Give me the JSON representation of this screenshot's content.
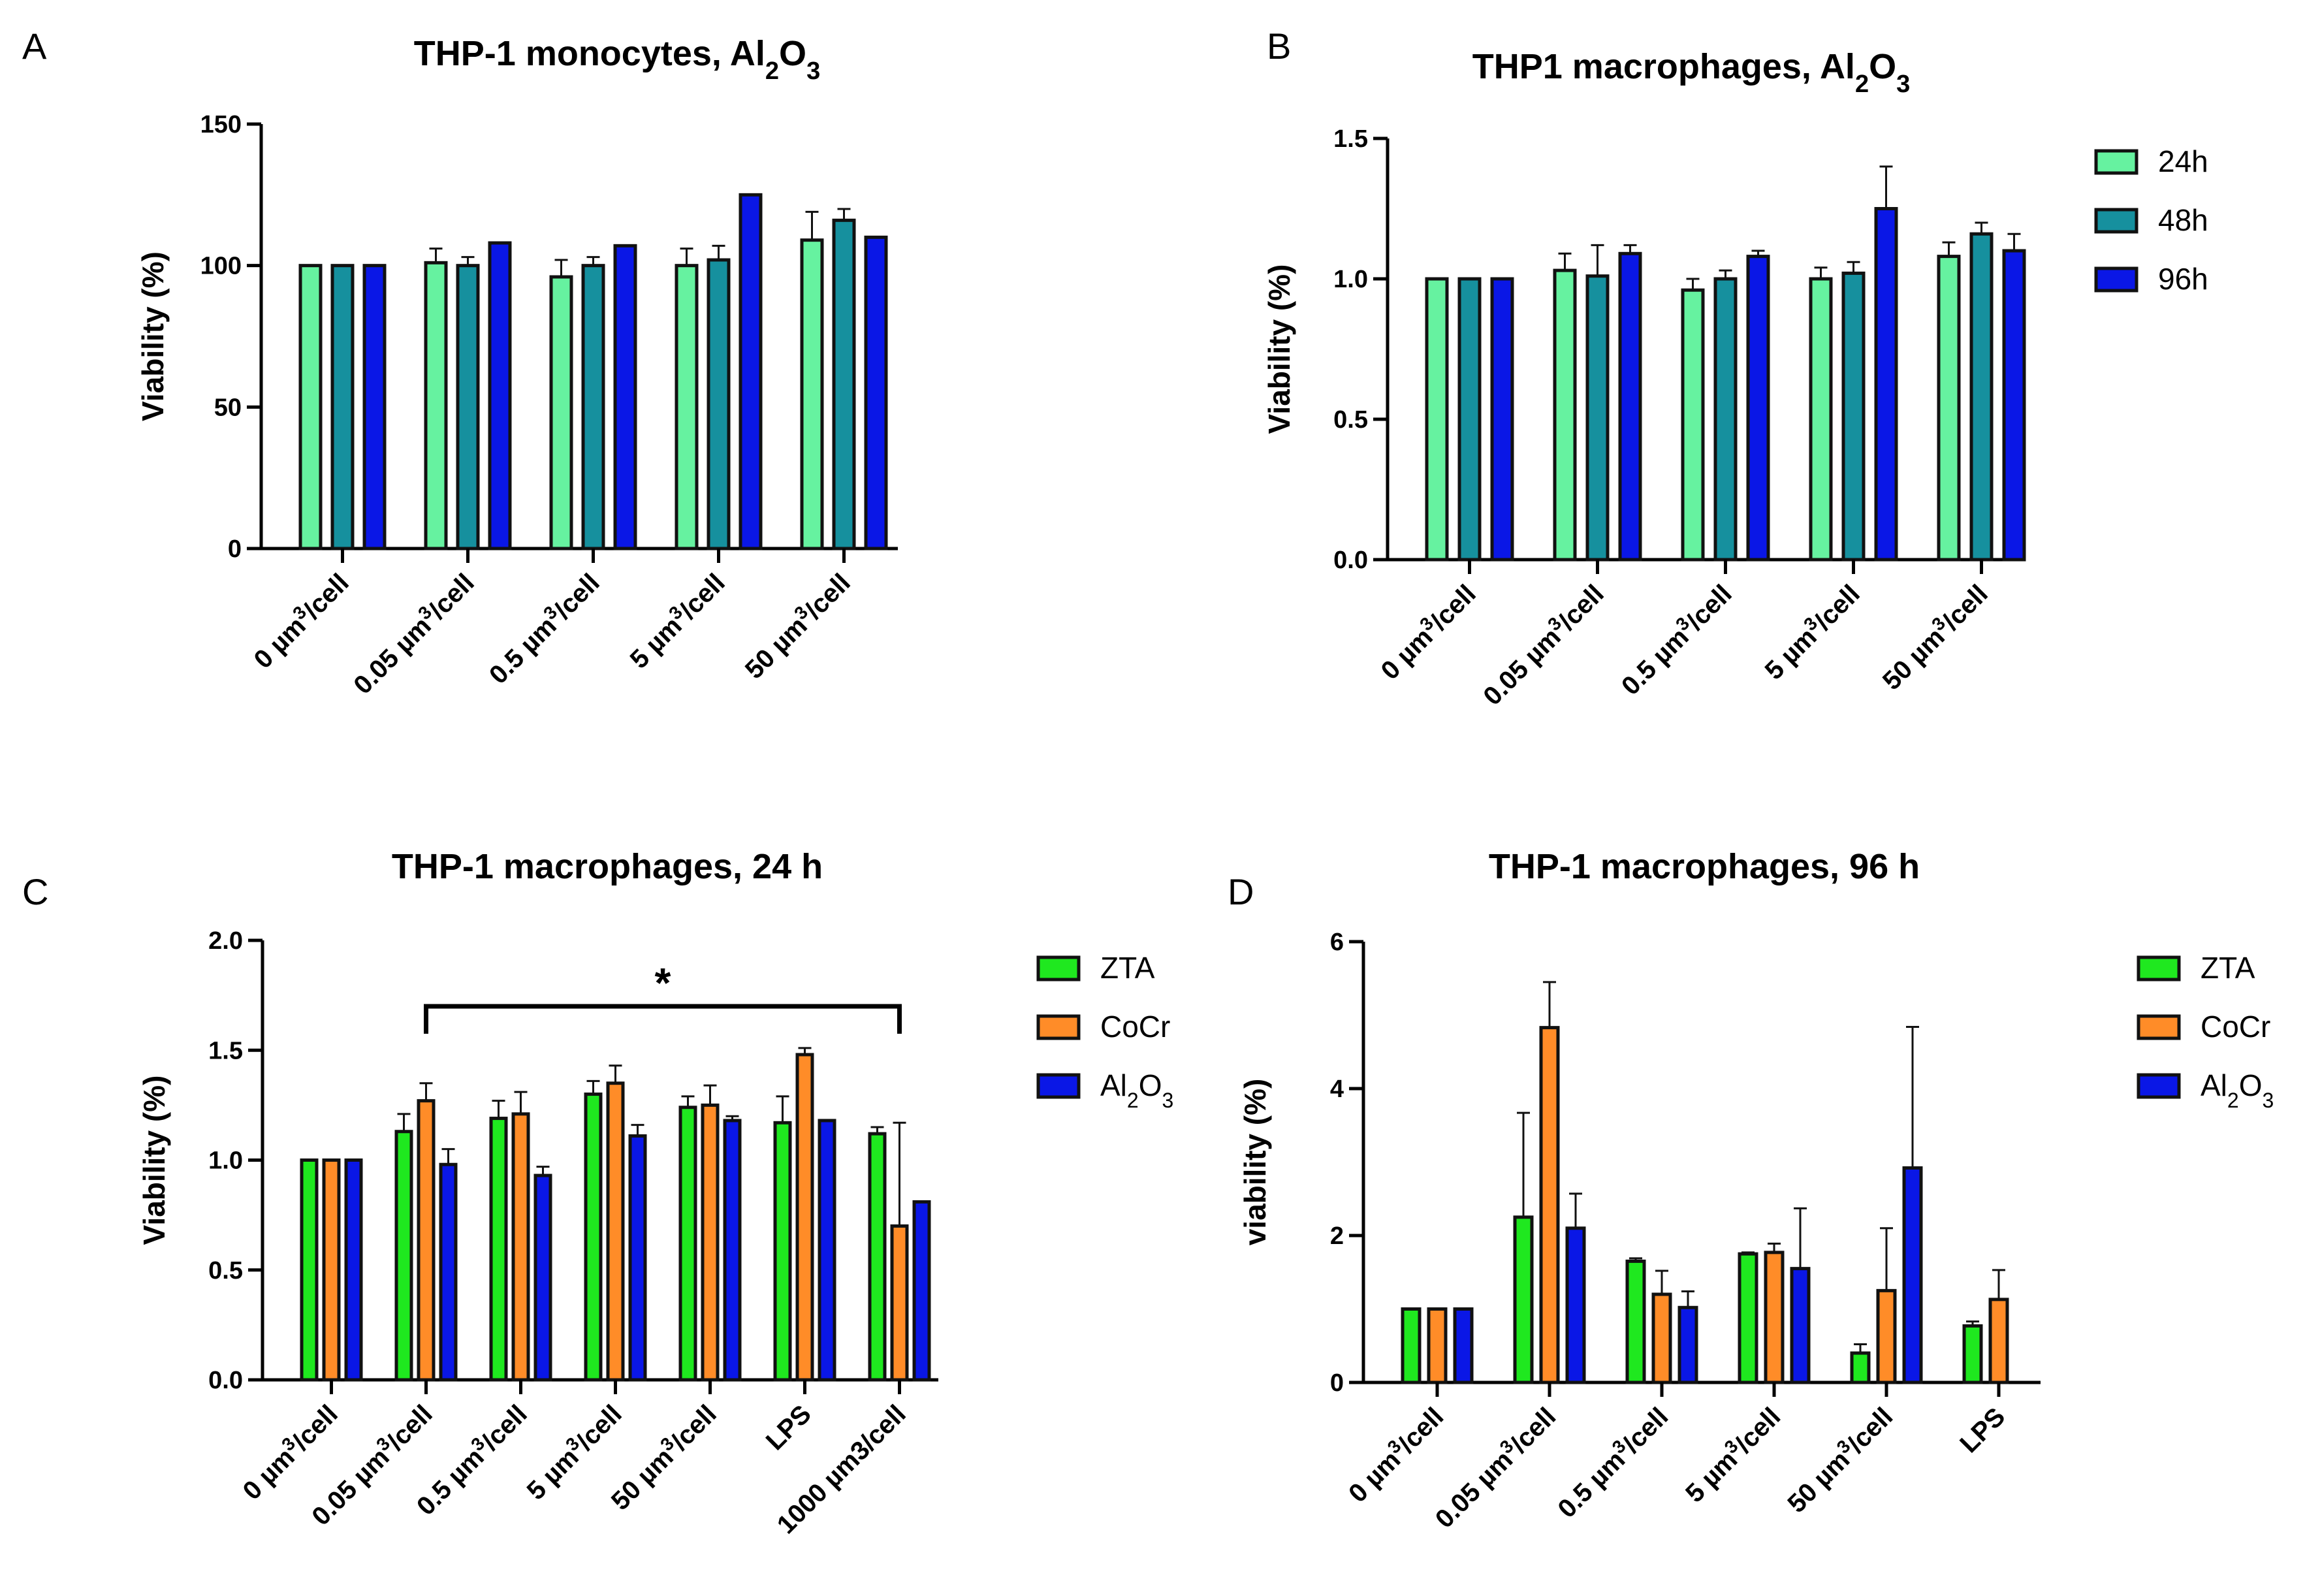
{
  "chart_data": [
    {
      "panel": "A",
      "type": "bar",
      "title": "THP-1 monocytes,  Al2O3",
      "xlabel": "",
      "ylabel": "Viability (%)",
      "ylim": [
        0,
        150
      ],
      "yticks": [
        0,
        50,
        100,
        150
      ],
      "categories": [
        "0 µm³/cell",
        "0.05 µm³/cell",
        "0.5 µm³/cell",
        "5 µm³/cell",
        "50 µm³/cell"
      ],
      "series": [
        {
          "name": "24h",
          "color": "#66f2a0",
          "values": [
            100,
            101,
            96,
            100,
            109
          ],
          "errors": [
            0,
            5,
            6,
            6,
            10
          ]
        },
        {
          "name": "48h",
          "color": "#16909e",
          "values": [
            100,
            100,
            100,
            102,
            116
          ],
          "errors": [
            0,
            3,
            3,
            5,
            4
          ]
        },
        {
          "name": "96h",
          "color": "#0a17e6",
          "values": [
            100,
            108,
            107,
            125,
            110
          ],
          "errors": [
            0,
            0,
            0,
            0,
            0
          ]
        }
      ],
      "legend": "none",
      "grid": false
    },
    {
      "panel": "B",
      "type": "bar",
      "title": "THP1 macrophages, Al2O3",
      "xlabel": "",
      "ylabel": "Viability (%)",
      "ylim": [
        0,
        1.5
      ],
      "yticks": [
        0.0,
        0.5,
        1.0,
        1.5
      ],
      "categories": [
        "0 µm³/cell",
        "0.05 µm³/cell",
        "0.5 µm³/cell",
        "5 µm³/cell",
        "50 µm³/cell"
      ],
      "series": [
        {
          "name": "24h",
          "color": "#66f2a0",
          "values": [
            1.0,
            1.03,
            0.96,
            1.0,
            1.08
          ],
          "errors": [
            0,
            0.06,
            0.04,
            0.04,
            0.05
          ]
        },
        {
          "name": "48h",
          "color": "#16909e",
          "values": [
            1.0,
            1.01,
            1.0,
            1.02,
            1.16
          ],
          "errors": [
            0,
            0.11,
            0.03,
            0.04,
            0.04
          ]
        },
        {
          "name": "96h",
          "color": "#0a17e6",
          "values": [
            1.0,
            1.09,
            1.08,
            1.25,
            1.1
          ],
          "errors": [
            0,
            0.03,
            0.02,
            0.15,
            0.06
          ]
        }
      ],
      "legend": "right",
      "grid": false
    },
    {
      "panel": "C",
      "type": "bar",
      "title": "THP-1 macrophages, 24 h",
      "xlabel": "",
      "ylabel": "Viability (%)",
      "ylim": [
        0,
        2.0
      ],
      "yticks": [
        0.0,
        0.5,
        1.0,
        1.5,
        2.0
      ],
      "categories": [
        "0 µm³/cell",
        "0.05 µm³/cell",
        "0.5 µm³/cell",
        "5 µm³/cell",
        "50 µm³/cell",
        "LPS",
        "1000 µm3/cell"
      ],
      "series": [
        {
          "name": "ZTA",
          "color": "#1fe81f",
          "values": [
            1.0,
            1.13,
            1.19,
            1.3,
            1.24,
            1.17,
            1.12
          ],
          "errors": [
            0,
            0.08,
            0.08,
            0.06,
            0.05,
            0.12,
            0.03
          ]
        },
        {
          "name": "CoCr",
          "color": "#ff8c28",
          "values": [
            1.0,
            1.27,
            1.21,
            1.35,
            1.25,
            1.48,
            0.7
          ],
          "errors": [
            0,
            0.08,
            0.1,
            0.08,
            0.09,
            0.03,
            0.47
          ]
        },
        {
          "name": "Al2O3",
          "color": "#0a17e6",
          "values": [
            1.0,
            0.98,
            0.93,
            1.11,
            1.18,
            1.18,
            0.81
          ],
          "errors": [
            0,
            0.07,
            0.04,
            0.05,
            0.02,
            0,
            0
          ]
        }
      ],
      "significance": {
        "from": 1,
        "to": 6,
        "level": 1.7,
        "label": "*"
      },
      "legend": "right",
      "grid": false
    },
    {
      "panel": "D",
      "type": "bar",
      "title": "THP-1 macrophages, 96 h",
      "xlabel": "",
      "ylabel": "viability (%)",
      "ylim": [
        0,
        6
      ],
      "yticks": [
        0,
        2,
        4,
        6
      ],
      "categories": [
        "0 µm³/cell",
        "0.05 µm³/cell",
        "0.5 µm³/cell",
        "5 µm³/cell",
        "50 µm³/cell",
        "LPS"
      ],
      "series": [
        {
          "name": "ZTA",
          "color": "#1fe81f",
          "values": [
            1.0,
            2.25,
            1.65,
            1.75,
            0.4,
            0.77
          ],
          "errors": [
            0,
            1.42,
            0.04,
            0.02,
            0.12,
            0.06
          ]
        },
        {
          "name": "CoCr",
          "color": "#ff8c28",
          "values": [
            1.0,
            4.83,
            1.2,
            1.77,
            1.25,
            1.13
          ],
          "errors": [
            0,
            0.62,
            0.32,
            0.12,
            0.85,
            0.4
          ]
        },
        {
          "name": "Al2O3",
          "color": "#0a17e6",
          "values": [
            1.0,
            2.1,
            1.02,
            1.55,
            2.92,
            0
          ],
          "errors": [
            0,
            0.47,
            0.22,
            0.82,
            1.92,
            0
          ]
        }
      ],
      "legend": "right",
      "grid": false
    }
  ]
}
